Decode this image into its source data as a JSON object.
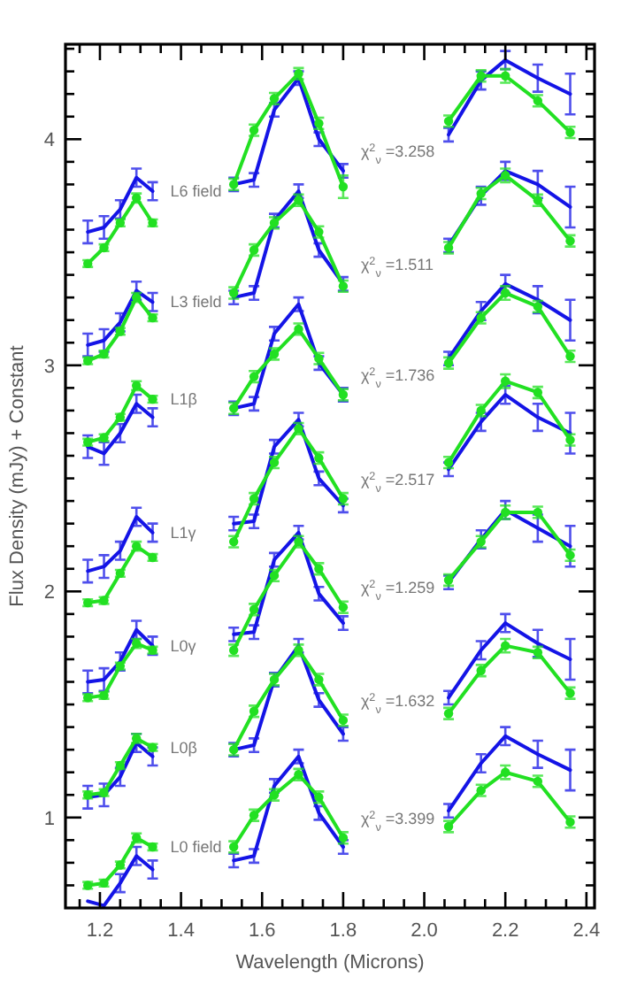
{
  "chart_data": {
    "type": "line",
    "xlabel": "Wavelength (Microns)",
    "ylabel": "Flux Density (mJy) + Constant",
    "x": [
      1.17,
      1.21,
      1.25,
      1.29,
      1.33,
      1.43,
      1.53,
      1.58,
      1.63,
      1.69,
      1.74,
      1.8,
      1.93,
      2.06,
      2.14,
      2.2,
      2.28,
      2.36
    ],
    "xlim": [
      1.115,
      2.42
    ],
    "xticks": [
      {
        "value": 1.15,
        "label": null
      },
      1.2,
      {
        "value": 1.25,
        "label": null
      },
      {
        "value": 1.3,
        "label": null
      },
      {
        "value": 1.35,
        "label": null
      },
      1.4,
      {
        "value": 1.45,
        "label": null
      },
      {
        "value": 1.5,
        "label": null
      },
      {
        "value": 1.55,
        "label": null
      },
      1.6,
      {
        "value": 1.65,
        "label": null
      },
      {
        "value": 1.7,
        "label": null
      },
      {
        "value": 1.75,
        "label": null
      },
      1.8,
      {
        "value": 1.85,
        "label": null
      },
      {
        "value": 1.9,
        "label": null
      },
      {
        "value": 1.95,
        "label": null
      },
      {
        "value": 2.0,
        "label": "2.0"
      },
      {
        "value": 2.05,
        "label": null
      },
      {
        "value": 2.1,
        "label": null
      },
      {
        "value": 2.15,
        "label": null
      },
      2.2,
      {
        "value": 2.25,
        "label": null
      },
      {
        "value": 2.3,
        "label": null
      },
      {
        "value": 2.35,
        "label": null
      },
      2.4
    ],
    "ylim": [
      0.6,
      4.42
    ],
    "yticks": [
      {
        "value": 0.7,
        "label": null
      },
      {
        "value": 0.8,
        "label": null
      },
      {
        "value": 0.9,
        "label": null
      },
      1,
      {
        "value": 1.1,
        "label": null
      },
      {
        "value": 1.2,
        "label": null
      },
      {
        "value": 1.3,
        "label": null
      },
      {
        "value": 1.4,
        "label": null
      },
      {
        "value": 1.5,
        "label": null
      },
      {
        "value": 1.6,
        "label": null
      },
      {
        "value": 1.7,
        "label": null
      },
      {
        "value": 1.8,
        "label": null
      },
      {
        "value": 1.9,
        "label": null
      },
      2,
      {
        "value": 2.1,
        "label": null
      },
      {
        "value": 2.2,
        "label": null
      },
      {
        "value": 2.3,
        "label": null
      },
      {
        "value": 2.4,
        "label": null
      },
      {
        "value": 2.5,
        "label": null
      },
      {
        "value": 2.6,
        "label": null
      },
      {
        "value": 2.7,
        "label": null
      },
      {
        "value": 2.8,
        "label": null
      },
      {
        "value": 2.9,
        "label": null
      },
      3,
      {
        "value": 3.1,
        "label": null
      },
      {
        "value": 3.2,
        "label": null
      },
      {
        "value": 3.3,
        "label": null
      },
      {
        "value": 3.4,
        "label": null
      },
      {
        "value": 3.5,
        "label": null
      },
      {
        "value": 3.6,
        "label": null
      },
      {
        "value": 3.7,
        "label": null
      },
      {
        "value": 3.8,
        "label": null
      },
      {
        "value": 3.9,
        "label": null
      },
      4,
      {
        "value": 4.1,
        "label": null
      },
      {
        "value": 4.2,
        "label": null
      },
      {
        "value": 4.3,
        "label": null
      },
      {
        "value": 4.4,
        "label": null
      }
    ],
    "series": [
      {
        "color": "#1414e6",
        "values": [
          3.59,
          3.61,
          3.69,
          3.83,
          3.77,
          null,
          3.8,
          3.82,
          4.13,
          4.27,
          4.0,
          3.86,
          null,
          4.02,
          4.26,
          4.35,
          4.27,
          4.2
        ],
        "errors": [
          0.05,
          0.05,
          0.04,
          0.04,
          0.04,
          null,
          0.03,
          0.03,
          0.03,
          0.03,
          0.03,
          0.03,
          null,
          0.03,
          0.04,
          0.04,
          0.06,
          0.09
        ]
      },
      {
        "color": "#22e022",
        "marker": "circle",
        "values": [
          3.45,
          3.52,
          3.63,
          3.74,
          3.63,
          null,
          3.8,
          4.04,
          4.18,
          4.29,
          4.07,
          3.79,
          null,
          4.08,
          4.28,
          4.28,
          4.17,
          4.03
        ],
        "errors": [
          0.015,
          0.015,
          0.015,
          0.02,
          0.015,
          null,
          0.025,
          0.025,
          0.025,
          0.025,
          0.025,
          0.05,
          null,
          0.025,
          0.025,
          0.03,
          0.025,
          0.025
        ]
      },
      {
        "color": "#1414e6",
        "values": [
          3.09,
          3.11,
          3.19,
          3.33,
          3.28,
          null,
          3.3,
          3.32,
          3.64,
          3.77,
          3.51,
          3.36,
          null,
          3.53,
          3.75,
          3.86,
          3.8,
          3.7
        ],
        "errors": [
          0.05,
          0.05,
          0.04,
          0.04,
          0.04,
          null,
          0.03,
          0.03,
          0.03,
          0.03,
          0.03,
          0.03,
          null,
          0.03,
          0.04,
          0.04,
          0.06,
          0.09
        ]
      },
      {
        "color": "#22e022",
        "marker": "circle",
        "values": [
          3.02,
          3.05,
          3.15,
          3.3,
          3.21,
          null,
          3.32,
          3.51,
          3.63,
          3.73,
          3.59,
          3.35,
          null,
          3.52,
          3.76,
          3.84,
          3.73,
          3.55
        ],
        "errors": [
          0.015,
          0.015,
          0.015,
          0.02,
          0.015,
          null,
          0.025,
          0.025,
          0.025,
          0.025,
          0.025,
          0.025,
          null,
          0.025,
          0.025,
          0.03,
          0.025,
          0.025
        ]
      },
      {
        "color": "#1414e6",
        "values": [
          2.64,
          2.61,
          2.7,
          2.83,
          2.77,
          null,
          2.81,
          2.83,
          3.14,
          3.27,
          3.01,
          2.87,
          null,
          3.03,
          3.24,
          3.36,
          3.29,
          3.2
        ],
        "errors": [
          0.05,
          0.05,
          0.04,
          0.04,
          0.04,
          null,
          0.03,
          0.03,
          0.03,
          0.03,
          0.03,
          0.03,
          null,
          0.03,
          0.04,
          0.04,
          0.06,
          0.09
        ]
      },
      {
        "color": "#22e022",
        "marker": "circle",
        "values": [
          2.66,
          2.68,
          2.77,
          2.91,
          2.85,
          null,
          2.81,
          2.95,
          3.05,
          3.16,
          3.03,
          2.87,
          null,
          3.01,
          3.21,
          3.32,
          3.26,
          3.04
        ],
        "errors": [
          0.015,
          0.015,
          0.015,
          0.02,
          0.015,
          null,
          0.025,
          0.025,
          0.025,
          0.025,
          0.025,
          0.025,
          null,
          0.025,
          0.025,
          0.03,
          0.025,
          0.025
        ]
      },
      {
        "color": "#1414e6",
        "values": [
          2.09,
          2.11,
          2.18,
          2.33,
          2.26,
          null,
          2.3,
          2.31,
          2.64,
          2.76,
          2.5,
          2.38,
          null,
          2.54,
          2.75,
          2.87,
          2.77,
          2.7
        ],
        "errors": [
          0.05,
          0.05,
          0.04,
          0.04,
          0.04,
          null,
          0.03,
          0.03,
          0.03,
          0.03,
          0.03,
          0.03,
          null,
          0.03,
          0.04,
          0.04,
          0.06,
          0.09
        ]
      },
      {
        "color": "#22e022",
        "marker": "circle",
        "values": [
          1.95,
          1.96,
          2.08,
          2.2,
          2.15,
          null,
          2.22,
          2.41,
          2.57,
          2.72,
          2.59,
          2.41,
          null,
          2.57,
          2.8,
          2.93,
          2.88,
          2.67
        ],
        "errors": [
          0.015,
          0.015,
          0.015,
          0.02,
          0.015,
          null,
          0.025,
          0.025,
          0.025,
          0.025,
          0.025,
          0.025,
          null,
          0.025,
          0.025,
          0.03,
          0.025,
          0.025
        ]
      },
      {
        "color": "#1414e6",
        "values": [
          1.6,
          1.61,
          1.69,
          1.83,
          1.76,
          null,
          1.81,
          1.82,
          2.14,
          2.26,
          1.99,
          1.86,
          null,
          2.04,
          2.23,
          2.36,
          2.28,
          2.2
        ],
        "errors": [
          0.05,
          0.05,
          0.04,
          0.04,
          0.04,
          null,
          0.03,
          0.03,
          0.03,
          0.03,
          0.03,
          0.03,
          null,
          0.03,
          0.04,
          0.04,
          0.06,
          0.09
        ]
      },
      {
        "color": "#22e022",
        "marker": "circle",
        "values": [
          1.53,
          1.54,
          1.67,
          1.77,
          1.74,
          null,
          1.74,
          1.92,
          2.07,
          2.22,
          2.1,
          1.93,
          null,
          2.05,
          2.22,
          2.35,
          2.35,
          2.16
        ],
        "errors": [
          0.015,
          0.015,
          0.015,
          0.02,
          0.015,
          null,
          0.025,
          0.025,
          0.025,
          0.025,
          0.025,
          0.025,
          null,
          0.025,
          0.025,
          0.03,
          0.025,
          0.025
        ]
      },
      {
        "color": "#1414e6",
        "values": [
          1.09,
          1.1,
          1.18,
          1.33,
          1.27,
          null,
          1.3,
          1.32,
          1.61,
          1.76,
          1.52,
          1.37,
          null,
          1.53,
          1.74,
          1.86,
          1.77,
          1.7
        ],
        "errors": [
          0.05,
          0.05,
          0.04,
          0.04,
          0.04,
          null,
          0.03,
          0.03,
          0.03,
          0.03,
          0.03,
          0.03,
          null,
          0.03,
          0.04,
          0.04,
          0.06,
          0.09
        ]
      },
      {
        "color": "#22e022",
        "marker": "circle",
        "values": [
          1.1,
          1.11,
          1.23,
          1.35,
          1.31,
          null,
          1.3,
          1.47,
          1.61,
          1.74,
          1.61,
          1.43,
          null,
          1.46,
          1.65,
          1.76,
          1.73,
          1.55
        ],
        "errors": [
          0.015,
          0.015,
          0.015,
          0.02,
          0.015,
          null,
          0.025,
          0.025,
          0.025,
          0.025,
          0.025,
          0.025,
          null,
          0.025,
          0.025,
          0.03,
          0.025,
          0.025
        ]
      },
      {
        "color": "#1414e6",
        "values": [
          0.63,
          0.61,
          0.71,
          0.83,
          0.77,
          null,
          0.81,
          0.83,
          1.14,
          1.27,
          1.02,
          0.87,
          null,
          1.03,
          1.24,
          1.36,
          1.28,
          1.21
        ],
        "errors": [
          null,
          null,
          0.04,
          0.04,
          0.04,
          null,
          0.03,
          0.03,
          0.03,
          0.03,
          0.03,
          0.03,
          null,
          0.03,
          0.04,
          0.04,
          0.06,
          0.09
        ]
      },
      {
        "color": "#22e022",
        "marker": "circle",
        "values": [
          0.7,
          0.71,
          0.79,
          0.91,
          0.87,
          null,
          0.87,
          1.01,
          1.1,
          1.19,
          1.09,
          0.91,
          null,
          0.96,
          1.12,
          1.2,
          1.16,
          0.98
        ],
        "errors": [
          0.015,
          0.015,
          0.015,
          0.02,
          0.015,
          null,
          0.025,
          0.025,
          0.025,
          0.025,
          0.025,
          0.025,
          null,
          0.025,
          0.025,
          0.03,
          0.025,
          0.025
        ]
      }
    ],
    "annotations": [
      "L6 field",
      "L3 field",
      "L1β",
      "L1γ",
      "L0γ",
      "L0β",
      "L0 field",
      "χ$^{2}$$_{ν}$ =3.258",
      "χ$^{2}$$_{ν}$ =1.511",
      "χ$^{2}$$_{ν}$ =1.736",
      "χ$^{2}$$_{ν}$ =2.517",
      "χ$^{2}$$_{ν}$ =1.259",
      "χ$^{2}$$_{ν}$ =1.632",
      "χ$^{2}$$_{ν}$ =3.399"
    ]
  }
}
